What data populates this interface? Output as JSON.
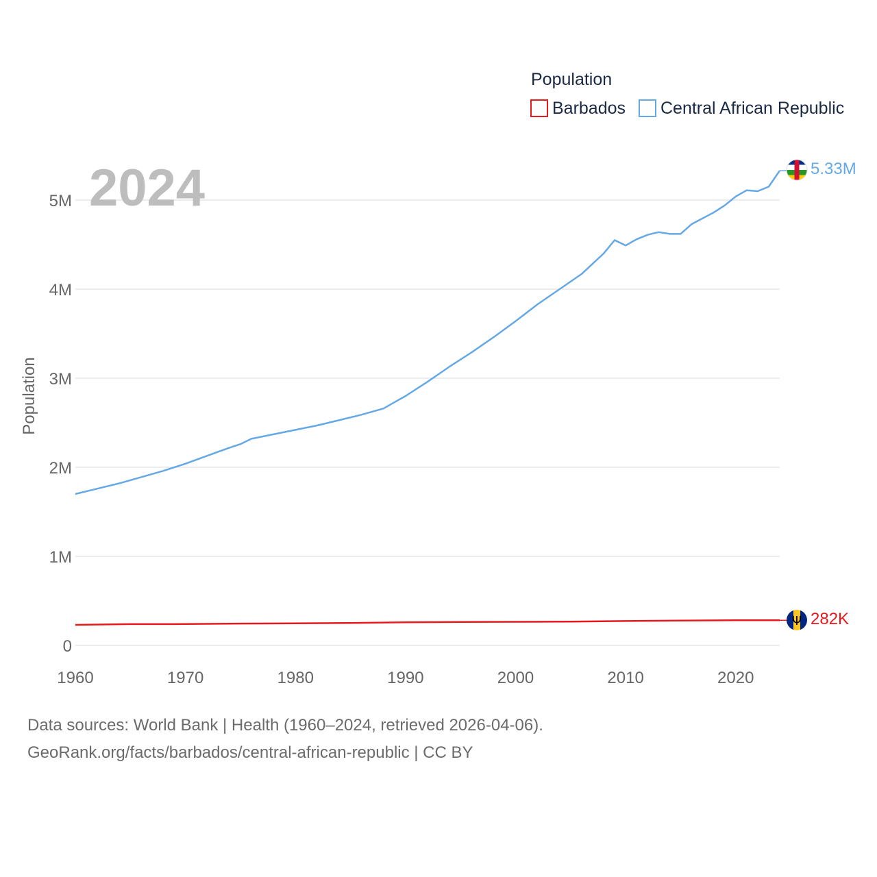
{
  "chart_data": {
    "type": "line",
    "title": "",
    "year_label": "2024",
    "xlabel": "",
    "ylabel": "Population",
    "xlim": [
      1960,
      2024
    ],
    "ylim": [
      0,
      5000000
    ],
    "x_ticks": [
      1960,
      1970,
      1980,
      1990,
      2000,
      2010,
      2020
    ],
    "y_ticks": [
      {
        "value": 0,
        "label": "0"
      },
      {
        "value": 1000000,
        "label": "1M"
      },
      {
        "value": 2000000,
        "label": "2M"
      },
      {
        "value": 3000000,
        "label": "3M"
      },
      {
        "value": 4000000,
        "label": "4M"
      },
      {
        "value": 5000000,
        "label": "5M"
      }
    ],
    "grid": true,
    "legend": {
      "title": "Population",
      "position": "top-right",
      "entries": [
        "Barbados",
        "Central African Republic"
      ]
    },
    "series": [
      {
        "name": "Barbados",
        "color": "#e8191d",
        "end_label": "282K",
        "points": [
          [
            1960,
            231000
          ],
          [
            1965,
            239000
          ],
          [
            1970,
            240000
          ],
          [
            1975,
            245000
          ],
          [
            1980,
            248000
          ],
          [
            1985,
            252000
          ],
          [
            1990,
            259000
          ],
          [
            1995,
            263000
          ],
          [
            2000,
            265000
          ],
          [
            2005,
            268000
          ],
          [
            2010,
            274000
          ],
          [
            2015,
            279000
          ],
          [
            2020,
            282000
          ],
          [
            2024,
            282000
          ]
        ]
      },
      {
        "name": "Central African Republic",
        "color": "#65a8e6",
        "end_label": "5.33M",
        "points": [
          [
            1960,
            1700000
          ],
          [
            1962,
            1760000
          ],
          [
            1964,
            1820000
          ],
          [
            1966,
            1890000
          ],
          [
            1968,
            1960000
          ],
          [
            1970,
            2040000
          ],
          [
            1972,
            2130000
          ],
          [
            1974,
            2220000
          ],
          [
            1975,
            2260000
          ],
          [
            1976,
            2320000
          ],
          [
            1978,
            2370000
          ],
          [
            1980,
            2420000
          ],
          [
            1982,
            2470000
          ],
          [
            1984,
            2530000
          ],
          [
            1986,
            2590000
          ],
          [
            1988,
            2660000
          ],
          [
            1989,
            2730000
          ],
          [
            1990,
            2800000
          ],
          [
            1992,
            2960000
          ],
          [
            1994,
            3130000
          ],
          [
            1996,
            3290000
          ],
          [
            1998,
            3460000
          ],
          [
            2000,
            3640000
          ],
          [
            2002,
            3830000
          ],
          [
            2004,
            4000000
          ],
          [
            2006,
            4170000
          ],
          [
            2008,
            4400000
          ],
          [
            2009,
            4550000
          ],
          [
            2010,
            4490000
          ],
          [
            2011,
            4560000
          ],
          [
            2012,
            4610000
          ],
          [
            2013,
            4640000
          ],
          [
            2014,
            4620000
          ],
          [
            2015,
            4620000
          ],
          [
            2016,
            4730000
          ],
          [
            2018,
            4860000
          ],
          [
            2019,
            4940000
          ],
          [
            2020,
            5040000
          ],
          [
            2021,
            5110000
          ],
          [
            2022,
            5100000
          ],
          [
            2023,
            5150000
          ],
          [
            2024,
            5330000
          ]
        ]
      }
    ]
  },
  "source": {
    "line1": "Data sources: World Bank | Health (1960–2024, retrieved 2026-04-06).",
    "line2": "GeoRank.org/facts/barbados/central-african-republic | CC BY"
  },
  "colors": {
    "barbados": "#e8191d",
    "car": "#65a8e6",
    "grid": "#e6e6e6",
    "tick": "#666666"
  }
}
